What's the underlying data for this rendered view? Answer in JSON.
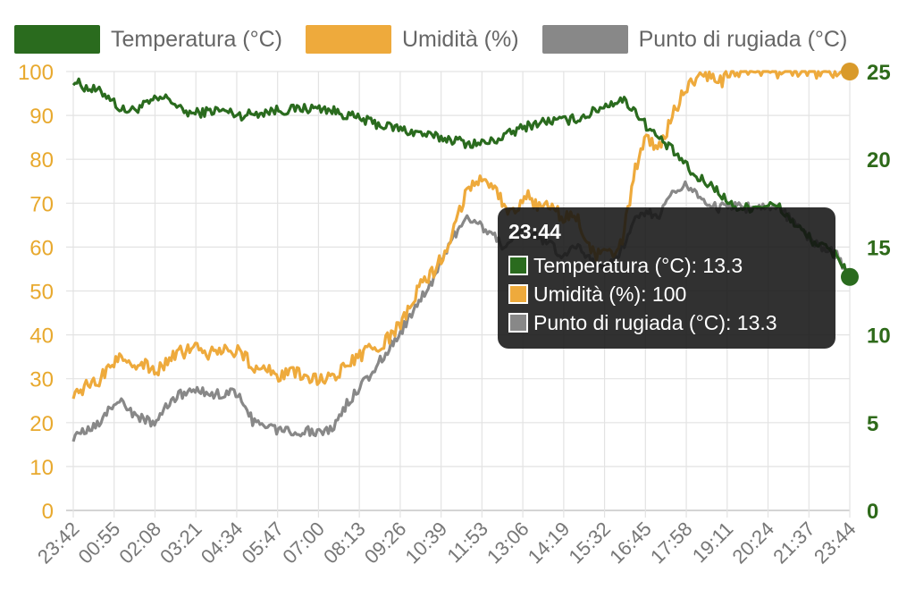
{
  "legend": {
    "items": [
      {
        "label": "Temperatura (°C)",
        "color": "#2a6b1e"
      },
      {
        "label": "Umidità (%)",
        "color": "#eeaa3c"
      },
      {
        "label": "Punto di rugiada (°C)",
        "color": "#888888"
      }
    ]
  },
  "tooltip": {
    "title": "23:44",
    "rows": [
      {
        "text": "Temperatura (°C): 13.3",
        "color": "#2a6b1e"
      },
      {
        "text": "Umidità (%): 100",
        "color": "#eeaa3c"
      },
      {
        "text": "Punto di rugiada (°C): 13.3",
        "color": "#888888"
      }
    ]
  },
  "colors": {
    "grid": "#e3e3e3",
    "left_axis": "#e8a92e",
    "right_axis": "#2e6a1a",
    "tick_x": "#777777"
  },
  "chart_data": {
    "type": "line",
    "title": "",
    "xlabel": "",
    "grid": true,
    "legend": "top",
    "x_ticks": [
      "23:42",
      "00:55",
      "02:08",
      "03:21",
      "04:34",
      "05:47",
      "07:00",
      "08:13",
      "09:26",
      "10:39",
      "11:53",
      "13:06",
      "14:19",
      "15:32",
      "16:45",
      "17:58",
      "19:11",
      "20:24",
      "21:37",
      "23:44"
    ],
    "y_left": {
      "label": "Umidità (%)",
      "ticks": [
        0,
        10,
        20,
        30,
        40,
        50,
        60,
        70,
        80,
        90,
        100
      ],
      "range": [
        0,
        100
      ]
    },
    "y_right": {
      "label": "°C",
      "ticks": [
        0,
        5,
        10,
        15,
        20,
        25
      ],
      "range": [
        0,
        25
      ]
    },
    "series": [
      {
        "name": "Temperatura (°C)",
        "axis": "right",
        "color": "#2a6b1e",
        "values": [
          24.5,
          24.1,
          23.9,
          23.6,
          22.8,
          22.8,
          23.1,
          23.4,
          23.5,
          22.8,
          22.6,
          22.7,
          22.8,
          22.7,
          22.5,
          22.6,
          22.7,
          22.8,
          22.8,
          22.9,
          22.9,
          22.9,
          22.7,
          22.5,
          22.3,
          22.1,
          21.9,
          21.8,
          21.6,
          21.5,
          21.3,
          21.2,
          21.1,
          20.9,
          20.9,
          21.0,
          21.3,
          21.6,
          21.9,
          22.1,
          22.2,
          22.2,
          22.3,
          22.5,
          22.9,
          23.2,
          23.4,
          22.8,
          21.9,
          21.2,
          20.6,
          19.9,
          19.0,
          18.7,
          18.2,
          17.4,
          17.2,
          17.3,
          17.4,
          17.3,
          16.6,
          15.9,
          15.3,
          14.9,
          14.5,
          13.3
        ]
      },
      {
        "name": "Umidità (%)",
        "axis": "left",
        "color": "#eeaa3c",
        "values": [
          27,
          28,
          29,
          33,
          35,
          34,
          33,
          32,
          34,
          36,
          37,
          36,
          36,
          37,
          36,
          33,
          32,
          31,
          31,
          31,
          30,
          30,
          31,
          33,
          35,
          37,
          38,
          41,
          45,
          51,
          54,
          58,
          66,
          73,
          76,
          75,
          70,
          67,
          72,
          69,
          70,
          66,
          68,
          60,
          58,
          58,
          62,
          77,
          85,
          82,
          89,
          95,
          98,
          99,
          97,
          100,
          100,
          100,
          100,
          100,
          100,
          100,
          100,
          100,
          100,
          100
        ]
      },
      {
        "name": "Punto di rugiada (°C)",
        "axis": "right",
        "color": "#888888",
        "values": [
          4.2,
          4.5,
          4.8,
          5.8,
          6.3,
          5.4,
          5.2,
          4.9,
          6.2,
          6.6,
          6.8,
          6.7,
          6.6,
          6.8,
          6.5,
          5.1,
          4.8,
          4.6,
          4.6,
          4.5,
          4.5,
          4.5,
          4.9,
          6.2,
          7.0,
          7.9,
          8.8,
          9.8,
          10.8,
          12.0,
          13.0,
          14.5,
          15.8,
          16.6,
          16.3,
          15.7,
          15.1,
          15.8,
          15.9,
          15.6,
          15.1,
          14.3,
          15.2,
          14.6,
          13.8,
          14.0,
          15.0,
          16.8,
          17.1,
          16.6,
          17.9,
          18.6,
          18.2,
          17.5,
          17.2,
          17.4,
          17.2,
          17.3,
          17.4,
          17.3,
          16.6,
          15.9,
          15.3,
          14.9,
          14.5,
          13.3
        ]
      }
    ]
  }
}
